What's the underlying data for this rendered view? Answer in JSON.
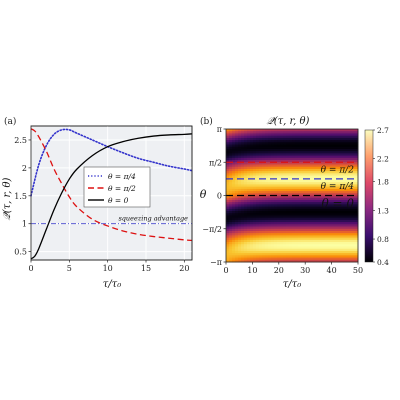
{
  "chart_data": [
    {
      "panel_label": "(a)",
      "type": "line",
      "xlabel": "τ/τ₀",
      "ylabel": "𝒬(τ, r, θ)",
      "xlim": [
        0,
        21
      ],
      "ylim": [
        0.35,
        2.75
      ],
      "xticks": [
        "0",
        "5",
        "10",
        "15",
        "20"
      ],
      "yticks": [
        "0.5",
        "1",
        "1.5",
        "2",
        "2.5"
      ],
      "grid": true,
      "legend_placement": "center-right",
      "series": [
        {
          "name": "θ = π/4",
          "color": "#3333cc",
          "style": "dotted",
          "x": [
            0,
            1,
            2,
            3,
            4,
            5,
            6,
            8,
            10,
            12,
            14,
            16,
            18,
            20,
            21
          ],
          "y": [
            1.5,
            2.05,
            2.4,
            2.6,
            2.68,
            2.68,
            2.62,
            2.5,
            2.38,
            2.27,
            2.17,
            2.1,
            2.03,
            1.98,
            1.95
          ]
        },
        {
          "name": "θ = π/2",
          "color": "#dd1111",
          "style": "dashed",
          "x": [
            0,
            0.5,
            1,
            2,
            3,
            4,
            5,
            6,
            8,
            10,
            12,
            14,
            16,
            18,
            20,
            21
          ],
          "y": [
            2.7,
            2.66,
            2.56,
            2.3,
            1.98,
            1.72,
            1.48,
            1.3,
            1.08,
            0.96,
            0.87,
            0.81,
            0.77,
            0.74,
            0.71,
            0.7
          ]
        },
        {
          "name": "θ = 0",
          "color": "#000000",
          "style": "solid",
          "x": [
            0,
            0.5,
            1,
            2,
            3,
            4,
            5,
            6,
            8,
            10,
            12,
            14,
            16,
            18,
            20,
            21
          ],
          "y": [
            0.37,
            0.42,
            0.55,
            0.9,
            1.25,
            1.55,
            1.8,
            1.98,
            2.22,
            2.38,
            2.47,
            2.53,
            2.57,
            2.59,
            2.6,
            2.61
          ]
        }
      ],
      "reference_line": {
        "y": 1,
        "label": "squeezing advantage",
        "color": "#4444cc",
        "style": "dash-dot"
      }
    },
    {
      "panel_label": "(b)",
      "type": "heatmap",
      "title": "𝒬(τ, r, θ)",
      "xlabel": "τ/τ₀",
      "ylabel": "θ",
      "xlim": [
        0,
        50
      ],
      "ylim_labels": [
        "−π",
        "−π/2",
        "0",
        "π/2",
        "π"
      ],
      "xticks": [
        "0",
        "10",
        "20",
        "30",
        "40",
        "50"
      ],
      "colorscale": "inferno",
      "colorbar": {
        "min": 0.4,
        "max": 2.7,
        "ticks": [
          "0.4",
          "0.8",
          "1.3",
          "1.8",
          "2.2",
          "2.7"
        ]
      },
      "annotations": [
        {
          "text": "θ = π/2",
          "color": "#dd1111",
          "theta_fraction": 0.5
        },
        {
          "text": "θ = π/4",
          "color": "#3333cc",
          "theta_fraction": 0.25
        },
        {
          "text": "θ = 0",
          "color": "#000000",
          "theta_fraction": 0.0
        }
      ]
    }
  ]
}
